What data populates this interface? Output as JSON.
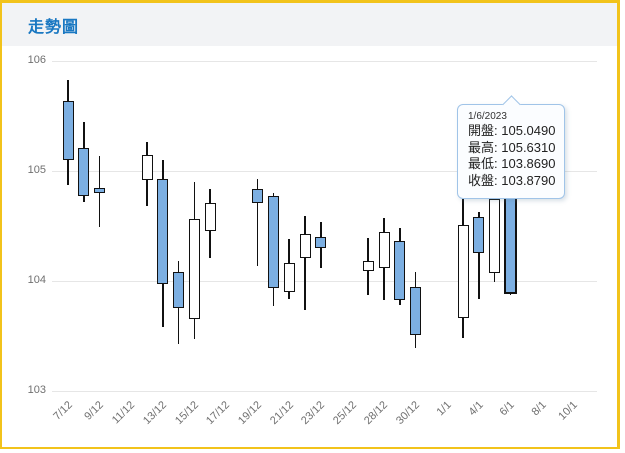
{
  "panel": {
    "title": "走勢圖",
    "border_color": "#f2c31b",
    "header_bg": "#f2f3f5",
    "title_color": "#1a78c2"
  },
  "tooltip": {
    "date": "1/6/2023",
    "rows": [
      {
        "label": "開盤",
        "value": "105.0490"
      },
      {
        "label": "最高",
        "value": "105.6310"
      },
      {
        "label": "最低",
        "value": "103.8690"
      },
      {
        "label": "收盤",
        "value": "103.8790"
      }
    ]
  },
  "chart_data": {
    "type": "candlestick",
    "title": "走勢圖",
    "ylim": [
      103,
      106
    ],
    "yticks": [
      106,
      105,
      104,
      103
    ],
    "grid": true,
    "legend": "none",
    "colors": {
      "down_fill": "#7cafe2",
      "up_fill": "#ffffff",
      "outline": "#111111",
      "grid": "#e6e6e6",
      "axis_label": "#707070"
    },
    "xticks": [
      {
        "slot": 0,
        "label": "7/12"
      },
      {
        "slot": 2,
        "label": "9/12"
      },
      {
        "slot": 4,
        "label": "11/12"
      },
      {
        "slot": 6,
        "label": "13/12"
      },
      {
        "slot": 8,
        "label": "15/12"
      },
      {
        "slot": 10,
        "label": "17/12"
      },
      {
        "slot": 12,
        "label": "19/12"
      },
      {
        "slot": 14,
        "label": "21/12"
      },
      {
        "slot": 16,
        "label": "23/12"
      },
      {
        "slot": 18,
        "label": "25/12"
      },
      {
        "slot": 20,
        "label": "28/12"
      },
      {
        "slot": 22,
        "label": "30/12"
      },
      {
        "slot": 24,
        "label": "1/1"
      },
      {
        "slot": 26,
        "label": "4/1"
      },
      {
        "slot": 28,
        "label": "6/1"
      },
      {
        "slot": 30,
        "label": "8/1"
      },
      {
        "slot": 32,
        "label": "10/1"
      }
    ],
    "candles": [
      {
        "date": "7/12",
        "slot": 0,
        "open": 105.64,
        "high": 105.83,
        "low": 104.87,
        "close": 105.1,
        "direction": "down"
      },
      {
        "date": "8/12",
        "slot": 1,
        "open": 105.21,
        "high": 105.45,
        "low": 104.72,
        "close": 104.77,
        "direction": "down"
      },
      {
        "date": "9/12",
        "slot": 2,
        "open": 104.85,
        "high": 105.14,
        "low": 104.49,
        "close": 104.8,
        "direction": "down"
      },
      {
        "date": "12/12",
        "slot": 5,
        "open": 104.92,
        "high": 105.26,
        "low": 104.68,
        "close": 105.15,
        "direction": "up"
      },
      {
        "date": "13/12",
        "slot": 6,
        "open": 104.93,
        "high": 105.1,
        "low": 103.58,
        "close": 103.97,
        "direction": "down"
      },
      {
        "date": "14/12",
        "slot": 7,
        "open": 104.08,
        "high": 104.18,
        "low": 103.43,
        "close": 103.75,
        "direction": "down"
      },
      {
        "date": "15/12",
        "slot": 8,
        "open": 103.65,
        "high": 104.9,
        "low": 103.47,
        "close": 104.56,
        "direction": "up"
      },
      {
        "date": "16/12",
        "slot": 9,
        "open": 104.45,
        "high": 104.84,
        "low": 104.21,
        "close": 104.71,
        "direction": "up"
      },
      {
        "date": "19/12",
        "slot": 12,
        "open": 104.84,
        "high": 104.93,
        "low": 104.14,
        "close": 104.71,
        "direction": "down"
      },
      {
        "date": "20/12",
        "slot": 13,
        "open": 104.77,
        "high": 104.8,
        "low": 103.77,
        "close": 103.94,
        "direction": "down"
      },
      {
        "date": "21/12",
        "slot": 14,
        "open": 103.9,
        "high": 104.38,
        "low": 103.84,
        "close": 104.16,
        "direction": "up"
      },
      {
        "date": "22/12",
        "slot": 15,
        "open": 104.21,
        "high": 104.59,
        "low": 103.74,
        "close": 104.43,
        "direction": "up"
      },
      {
        "date": "23/12",
        "slot": 16,
        "open": 104.4,
        "high": 104.54,
        "low": 104.12,
        "close": 104.3,
        "direction": "down"
      },
      {
        "date": "27/12",
        "slot": 19,
        "open": 104.09,
        "high": 104.39,
        "low": 103.87,
        "close": 104.18,
        "direction": "up"
      },
      {
        "date": "28/12",
        "slot": 20,
        "open": 104.12,
        "high": 104.57,
        "low": 103.83,
        "close": 104.45,
        "direction": "up"
      },
      {
        "date": "29/12",
        "slot": 21,
        "open": 104.36,
        "high": 104.48,
        "low": 103.78,
        "close": 103.83,
        "direction": "down"
      },
      {
        "date": "30/12",
        "slot": 22,
        "open": 103.95,
        "high": 104.08,
        "low": 103.39,
        "close": 103.51,
        "direction": "down"
      },
      {
        "date": "3/1",
        "slot": 25,
        "open": 103.66,
        "high": 104.75,
        "low": 103.48,
        "close": 104.51,
        "direction": "up"
      },
      {
        "date": "4/1",
        "slot": 26,
        "open": 104.58,
        "high": 104.63,
        "low": 103.84,
        "close": 104.25,
        "direction": "down"
      },
      {
        "date": "5/1",
        "slot": 27,
        "open": 104.07,
        "high": 104.78,
        "low": 103.99,
        "close": 104.75,
        "direction": "up"
      },
      {
        "date": "6/1",
        "slot": 28,
        "open": 105.049,
        "high": 105.631,
        "low": 103.869,
        "close": 103.879,
        "direction": "down",
        "hovered": true
      }
    ]
  }
}
